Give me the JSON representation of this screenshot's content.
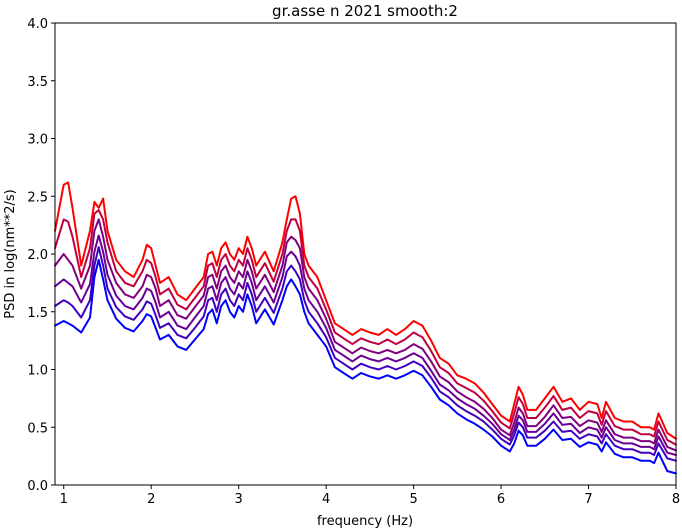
{
  "chart_data": {
    "type": "line",
    "title": "gr.asse n 2021 smooth:2",
    "xlabel": "frequency (Hz)",
    "ylabel": "PSD in log(nm**2/s)",
    "xlim": [
      0.9,
      8.0
    ],
    "ylim": [
      0.0,
      4.0
    ],
    "xticks": [
      1,
      2,
      3,
      4,
      5,
      6,
      7,
      8
    ],
    "yticks": [
      0.0,
      0.5,
      1.0,
      1.5,
      2.0,
      2.5,
      3.0,
      3.5,
      4.0
    ],
    "grid": false,
    "legend": "none",
    "x": [
      0.9,
      1.0,
      1.05,
      1.1,
      1.2,
      1.3,
      1.35,
      1.4,
      1.45,
      1.5,
      1.6,
      1.7,
      1.8,
      1.9,
      1.95,
      2.0,
      2.05,
      2.1,
      2.2,
      2.3,
      2.4,
      2.5,
      2.6,
      2.65,
      2.7,
      2.75,
      2.8,
      2.85,
      2.9,
      2.95,
      3.0,
      3.05,
      3.1,
      3.15,
      3.2,
      3.3,
      3.4,
      3.5,
      3.55,
      3.6,
      3.65,
      3.7,
      3.75,
      3.8,
      3.9,
      4.0,
      4.1,
      4.2,
      4.3,
      4.4,
      4.5,
      4.6,
      4.7,
      4.8,
      4.9,
      5.0,
      5.1,
      5.2,
      5.3,
      5.4,
      5.5,
      5.6,
      5.7,
      5.8,
      5.9,
      6.0,
      6.1,
      6.15,
      6.2,
      6.25,
      6.3,
      6.4,
      6.5,
      6.6,
      6.7,
      6.8,
      6.9,
      7.0,
      7.1,
      7.15,
      7.2,
      7.3,
      7.4,
      7.5,
      7.6,
      7.7,
      7.75,
      7.8,
      7.9,
      8.0
    ],
    "series": [
      {
        "color": "#ff0000",
        "values": [
          2.2,
          2.6,
          2.62,
          2.4,
          1.9,
          2.2,
          2.45,
          2.4,
          2.48,
          2.2,
          1.95,
          1.85,
          1.8,
          1.95,
          2.08,
          2.05,
          1.9,
          1.75,
          1.8,
          1.65,
          1.6,
          1.7,
          1.8,
          2.0,
          2.02,
          1.9,
          2.05,
          2.1,
          2.0,
          1.95,
          2.05,
          2.0,
          2.15,
          2.05,
          1.9,
          2.02,
          1.85,
          2.1,
          2.3,
          2.48,
          2.5,
          2.35,
          2.0,
          1.9,
          1.8,
          1.6,
          1.4,
          1.35,
          1.3,
          1.35,
          1.32,
          1.3,
          1.35,
          1.3,
          1.35,
          1.42,
          1.38,
          1.25,
          1.1,
          1.05,
          0.95,
          0.92,
          0.88,
          0.8,
          0.7,
          0.6,
          0.55,
          0.7,
          0.85,
          0.78,
          0.65,
          0.65,
          0.75,
          0.85,
          0.72,
          0.75,
          0.65,
          0.72,
          0.7,
          0.58,
          0.72,
          0.58,
          0.55,
          0.55,
          0.5,
          0.5,
          0.48,
          0.62,
          0.45,
          0.4
        ]
      },
      {
        "color": "#bf0040",
        "values": [
          2.05,
          2.3,
          2.28,
          2.15,
          1.8,
          2.05,
          2.35,
          2.38,
          2.3,
          2.1,
          1.85,
          1.75,
          1.72,
          1.85,
          1.95,
          1.92,
          1.8,
          1.65,
          1.7,
          1.56,
          1.52,
          1.62,
          1.72,
          1.9,
          1.92,
          1.8,
          1.95,
          2.0,
          1.9,
          1.85,
          1.95,
          1.9,
          2.05,
          1.95,
          1.8,
          1.92,
          1.76,
          2.0,
          2.2,
          2.3,
          2.3,
          2.2,
          1.9,
          1.8,
          1.7,
          1.52,
          1.32,
          1.27,
          1.22,
          1.27,
          1.24,
          1.22,
          1.26,
          1.22,
          1.26,
          1.32,
          1.28,
          1.16,
          1.02,
          0.97,
          0.88,
          0.84,
          0.8,
          0.73,
          0.64,
          0.54,
          0.49,
          0.62,
          0.76,
          0.7,
          0.58,
          0.58,
          0.67,
          0.77,
          0.65,
          0.67,
          0.58,
          0.64,
          0.62,
          0.52,
          0.64,
          0.51,
          0.48,
          0.48,
          0.44,
          0.44,
          0.42,
          0.55,
          0.39,
          0.35
        ]
      },
      {
        "color": "#800080",
        "values": [
          1.9,
          2.0,
          1.95,
          1.9,
          1.7,
          1.9,
          2.2,
          2.3,
          2.15,
          1.95,
          1.75,
          1.65,
          1.62,
          1.72,
          1.82,
          1.8,
          1.7,
          1.55,
          1.6,
          1.47,
          1.44,
          1.54,
          1.64,
          1.8,
          1.82,
          1.7,
          1.85,
          1.9,
          1.8,
          1.75,
          1.85,
          1.8,
          1.95,
          1.85,
          1.7,
          1.82,
          1.67,
          1.9,
          2.1,
          2.15,
          2.12,
          2.05,
          1.8,
          1.7,
          1.6,
          1.44,
          1.24,
          1.19,
          1.14,
          1.19,
          1.16,
          1.14,
          1.17,
          1.14,
          1.17,
          1.22,
          1.18,
          1.07,
          0.94,
          0.89,
          0.81,
          0.76,
          0.72,
          0.66,
          0.58,
          0.48,
          0.43,
          0.54,
          0.67,
          0.62,
          0.51,
          0.51,
          0.59,
          0.69,
          0.58,
          0.59,
          0.51,
          0.56,
          0.54,
          0.46,
          0.56,
          0.44,
          0.41,
          0.41,
          0.38,
          0.38,
          0.36,
          0.48,
          0.33,
          0.3
        ]
      },
      {
        "color": "#6a0095",
        "values": [
          1.72,
          1.78,
          1.75,
          1.72,
          1.58,
          1.74,
          2.02,
          2.16,
          2.02,
          1.82,
          1.64,
          1.55,
          1.52,
          1.62,
          1.7,
          1.68,
          1.58,
          1.45,
          1.5,
          1.38,
          1.35,
          1.45,
          1.55,
          1.7,
          1.72,
          1.6,
          1.75,
          1.8,
          1.7,
          1.65,
          1.75,
          1.7,
          1.85,
          1.75,
          1.6,
          1.72,
          1.58,
          1.8,
          1.98,
          2.02,
          1.98,
          1.9,
          1.7,
          1.6,
          1.5,
          1.36,
          1.17,
          1.12,
          1.07,
          1.12,
          1.09,
          1.07,
          1.1,
          1.07,
          1.1,
          1.14,
          1.1,
          0.99,
          0.87,
          0.82,
          0.75,
          0.7,
          0.66,
          0.6,
          0.53,
          0.44,
          0.39,
          0.48,
          0.6,
          0.56,
          0.46,
          0.46,
          0.53,
          0.62,
          0.52,
          0.53,
          0.45,
          0.5,
          0.48,
          0.41,
          0.5,
          0.39,
          0.36,
          0.36,
          0.33,
          0.33,
          0.31,
          0.42,
          0.28,
          0.26
        ]
      },
      {
        "color": "#4000bf",
        "values": [
          1.55,
          1.6,
          1.58,
          1.55,
          1.45,
          1.6,
          1.9,
          2.06,
          1.9,
          1.7,
          1.54,
          1.46,
          1.43,
          1.52,
          1.59,
          1.57,
          1.47,
          1.36,
          1.4,
          1.3,
          1.27,
          1.36,
          1.46,
          1.6,
          1.62,
          1.5,
          1.65,
          1.7,
          1.6,
          1.55,
          1.65,
          1.6,
          1.75,
          1.65,
          1.5,
          1.62,
          1.49,
          1.7,
          1.85,
          1.9,
          1.85,
          1.78,
          1.6,
          1.5,
          1.4,
          1.28,
          1.1,
          1.05,
          1.0,
          1.05,
          1.02,
          1.0,
          1.03,
          1.0,
          1.03,
          1.07,
          1.03,
          0.93,
          0.81,
          0.76,
          0.69,
          0.64,
          0.6,
          0.55,
          0.48,
          0.4,
          0.35,
          0.43,
          0.54,
          0.5,
          0.41,
          0.41,
          0.47,
          0.55,
          0.46,
          0.47,
          0.4,
          0.44,
          0.42,
          0.36,
          0.44,
          0.34,
          0.31,
          0.31,
          0.28,
          0.28,
          0.26,
          0.36,
          0.23,
          0.21
        ]
      },
      {
        "color": "#0000ff",
        "values": [
          1.38,
          1.42,
          1.4,
          1.38,
          1.32,
          1.45,
          1.8,
          1.95,
          1.78,
          1.6,
          1.44,
          1.36,
          1.33,
          1.42,
          1.48,
          1.46,
          1.36,
          1.26,
          1.3,
          1.2,
          1.17,
          1.26,
          1.35,
          1.48,
          1.52,
          1.4,
          1.55,
          1.6,
          1.5,
          1.45,
          1.55,
          1.5,
          1.65,
          1.55,
          1.4,
          1.52,
          1.39,
          1.6,
          1.72,
          1.78,
          1.72,
          1.65,
          1.5,
          1.4,
          1.3,
          1.2,
          1.02,
          0.97,
          0.92,
          0.97,
          0.94,
          0.92,
          0.95,
          0.92,
          0.95,
          0.99,
          0.95,
          0.85,
          0.74,
          0.69,
          0.62,
          0.57,
          0.53,
          0.48,
          0.42,
          0.34,
          0.29,
          0.36,
          0.47,
          0.43,
          0.34,
          0.34,
          0.4,
          0.48,
          0.39,
          0.4,
          0.33,
          0.37,
          0.35,
          0.29,
          0.37,
          0.27,
          0.24,
          0.24,
          0.21,
          0.21,
          0.19,
          0.28,
          0.12,
          0.1
        ]
      }
    ]
  }
}
